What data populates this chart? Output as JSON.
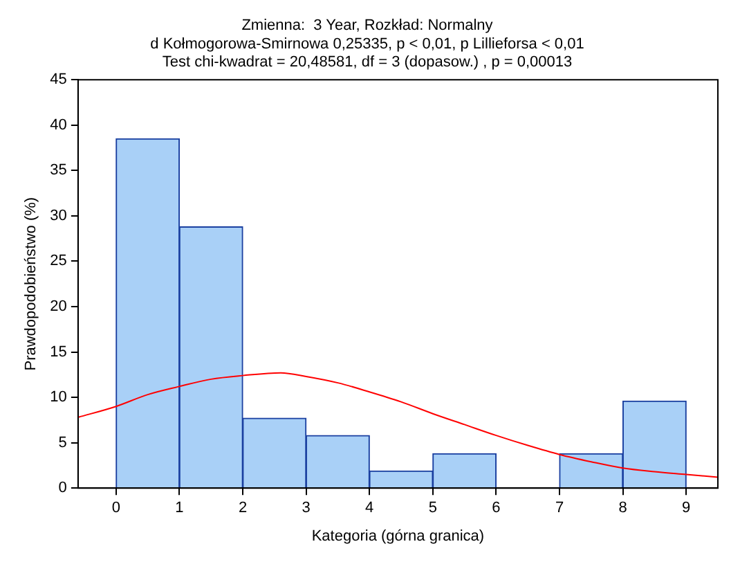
{
  "chart_data": {
    "type": "histogram",
    "title": "Zmienna:  3 Year, Rozkład: Normalny",
    "subtitle": "d Kołmogorowa-Smirnowa 0,25335, p < 0,01, p Lillieforsa < 0,01\nTest chi-kwadrat = 20,48581, df = 3 (dopasow.) , p = 0,00013",
    "xlabel": "Kategoria (górna granica)",
    "ylabel": "Prawdopodobieństwo (%)",
    "series": [
      {
        "color": "#a9d0f7",
        "bins": [
          0,
          1,
          2,
          3,
          4,
          5,
          6,
          7,
          8,
          9
        ],
        "values": [
          38.5,
          28.8,
          7.7,
          5.8,
          1.9,
          3.8,
          0,
          3.8,
          9.6
        ]
      },
      {
        "type": "line",
        "color": "#ff0000",
        "x": [
          -0.6,
          0,
          0.5,
          1,
          1.5,
          2,
          2.6,
          3,
          3.5,
          4,
          4.5,
          5,
          5.5,
          6,
          6.5,
          7,
          7.5,
          8,
          8.5,
          9,
          9.5
        ],
        "values": [
          7.8,
          9,
          10.3,
          11.2,
          12,
          12.4,
          12.7,
          12.3,
          11.6,
          10.6,
          9.5,
          8.2,
          7,
          5.8,
          4.7,
          3.7,
          2.9,
          2.2,
          1.8,
          1.5,
          1.2
        ]
      }
    ],
    "xlim": [
      -0.6,
      9.5
    ],
    "xticks": [
      0,
      1,
      2,
      3,
      4,
      5,
      6,
      7,
      8,
      9
    ],
    "ylim": [
      0,
      45
    ],
    "yticks": [
      0,
      5,
      10,
      15,
      20,
      25,
      30,
      35,
      40,
      45
    ],
    "grid": false,
    "legend": false
  }
}
